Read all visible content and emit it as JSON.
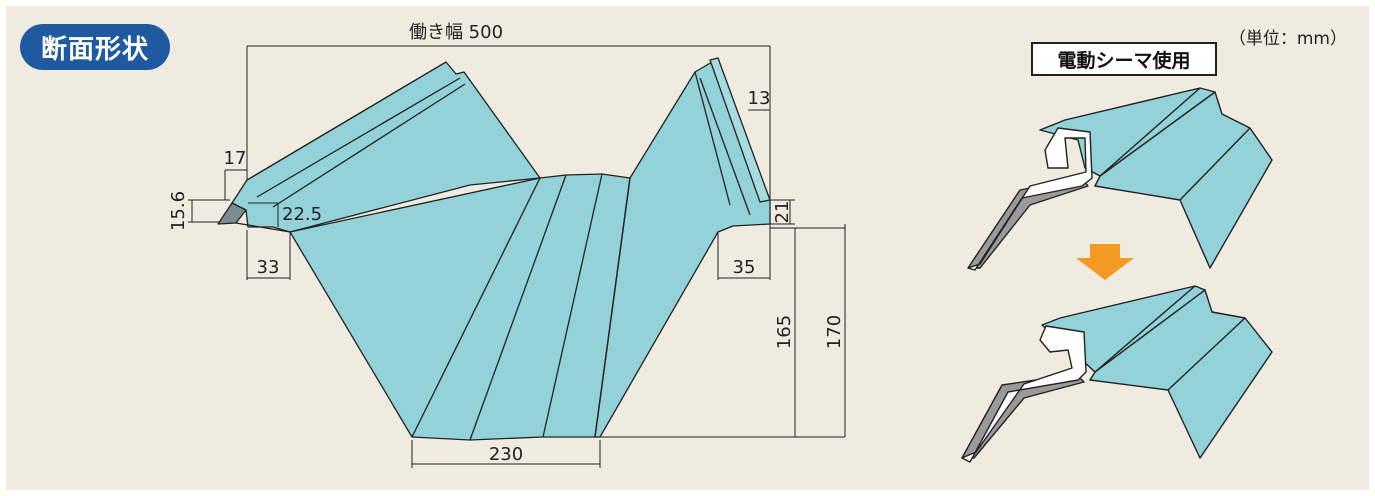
{
  "title": "断面形状",
  "unit_note": "（単位：mm）",
  "seamer_label": "電動シーマ使用",
  "dimensions": {
    "work_width": "働き幅 500",
    "d17": "17",
    "d15_6": "15.6",
    "d22_5": "22.5",
    "d33": "33",
    "d13": "13",
    "d21": "21",
    "d35": "35",
    "d165": "165",
    "d170": "170",
    "d230": "230"
  },
  "colors": {
    "steel": "#92d2d8",
    "steel_dark": "#9a9a9a",
    "badge": "#1f5aa0",
    "arrow": "#f39a22",
    "background": "#f0ebe1"
  }
}
